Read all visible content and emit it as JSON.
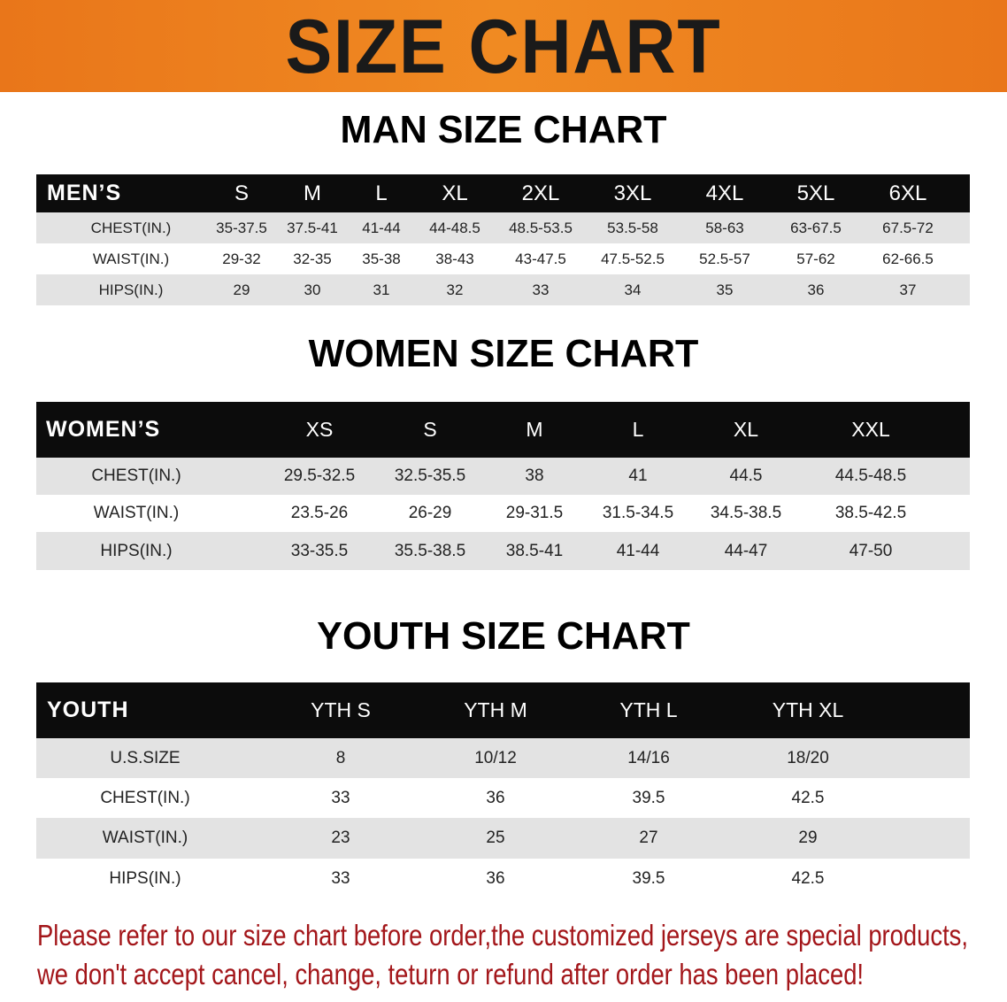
{
  "banner_title": "SIZE CHART",
  "men": {
    "title": "MAN SIZE CHART",
    "header": [
      "MEN’S",
      "S",
      "M",
      "L",
      "XL",
      "2XL",
      "3XL",
      "4XL",
      "5XL",
      "6XL"
    ],
    "rows": [
      [
        "CHEST(IN.)",
        "35-37.5",
        "37.5-41",
        "41-44",
        "44-48.5",
        "48.5-53.5",
        "53.5-58",
        "58-63",
        "63-67.5",
        "67.5-72"
      ],
      [
        "WAIST(IN.)",
        "29-32",
        "32-35",
        "35-38",
        "38-43",
        "43-47.5",
        "47.5-52.5",
        "52.5-57",
        "57-62",
        "62-66.5"
      ],
      [
        "HIPS(IN.)",
        "29",
        "30",
        "31",
        "32",
        "33",
        "34",
        "35",
        "36",
        "37"
      ]
    ]
  },
  "women": {
    "title": "WOMEN SIZE CHART",
    "header": [
      "WOMEN’S",
      "XS",
      "S",
      "M",
      "L",
      "XL",
      "XXL"
    ],
    "rows": [
      [
        "CHEST(IN.)",
        "29.5-32.5",
        "32.5-35.5",
        "38",
        "41",
        "44.5",
        "44.5-48.5"
      ],
      [
        "WAIST(IN.)",
        "23.5-26",
        "26-29",
        "29-31.5",
        "31.5-34.5",
        "34.5-38.5",
        "38.5-42.5"
      ],
      [
        "HIPS(IN.)",
        "33-35.5",
        "35.5-38.5",
        "38.5-41",
        "41-44",
        "44-47",
        "47-50"
      ]
    ]
  },
  "youth": {
    "title": "YOUTH SIZE CHART",
    "header": [
      "YOUTH",
      "YTH S",
      "YTH M",
      "YTH L",
      "YTH XL"
    ],
    "rows": [
      [
        "U.S.SIZE",
        "8",
        "10/12",
        "14/16",
        "18/20"
      ],
      [
        "CHEST(IN.)",
        "33",
        "36",
        "39.5",
        "42.5"
      ],
      [
        "WAIST(IN.)",
        "23",
        "25",
        "27",
        "29"
      ],
      [
        "HIPS(IN.)",
        "33",
        "36",
        "39.5",
        "42.5"
      ]
    ]
  },
  "notes": [
    "Please refer to our size chart before order,the customized jerseys are special products,",
    "we don't accept cancel, change, teturn or refund after order has been placed!"
  ],
  "colors": {
    "banner": "#ec7f1e",
    "header": "#0c0c0c",
    "row_alt": "#e3e3e3",
    "note": "#a3161a"
  }
}
